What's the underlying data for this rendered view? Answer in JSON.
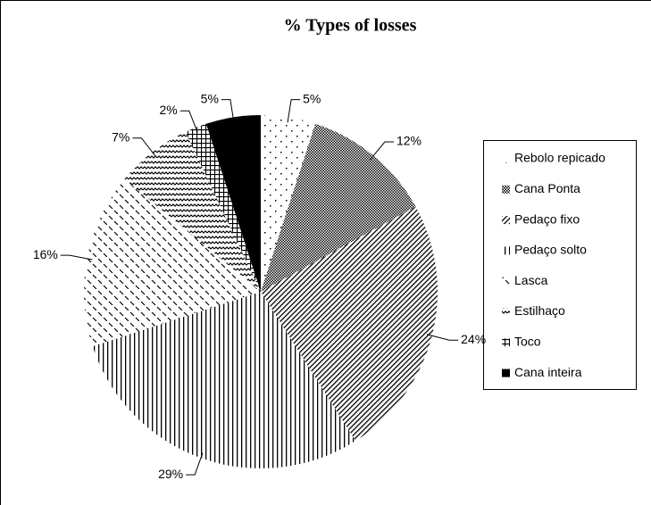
{
  "chart_data": {
    "type": "pie",
    "title": "% Types of losses",
    "categories": [
      "Rebolo repicado",
      "Cana Ponta",
      "Pedaço fixo",
      "Pedaço solto",
      "Lasca",
      "Estilhaço",
      "Toco",
      "Cana inteira"
    ],
    "values": [
      5,
      12,
      24,
      29,
      16,
      7,
      2,
      5
    ],
    "value_labels": [
      "5%",
      "12%",
      "24%",
      "29%",
      "16%",
      "7%",
      "2%",
      "5%"
    ],
    "legend": "right"
  }
}
